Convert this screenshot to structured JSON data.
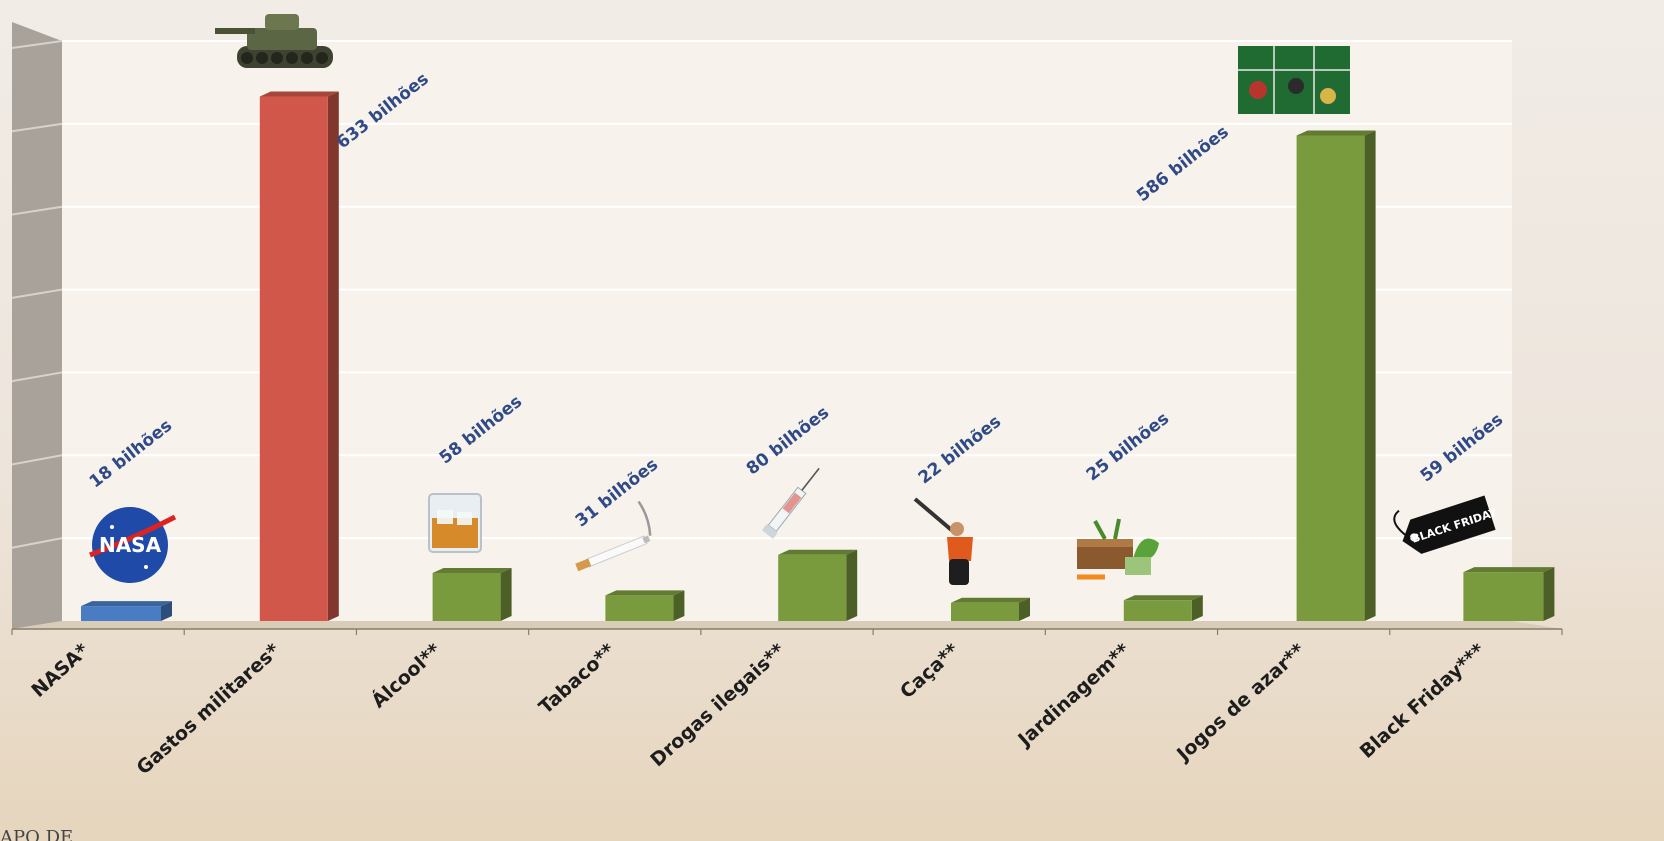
{
  "chart_data": {
    "type": "bar",
    "title": "",
    "xlabel": "",
    "ylabel": "",
    "ylim": [
      0,
      700
    ],
    "unit": "bilhões",
    "categories": [
      "NASA*",
      "Gastos militares*",
      "Álcool**",
      "Tabaco**",
      "Drogas ilegais**",
      "Caça**",
      "Jardinagem**",
      "Jogos de azar**",
      "Black Friday***"
    ],
    "values": [
      18,
      633,
      58,
      31,
      80,
      22,
      25,
      586,
      59
    ],
    "value_labels": [
      "18 bilhões",
      "633 bilhões",
      "58 bilhões",
      "31 bilhões",
      "80 bilhões",
      "22 bilhões",
      "25 bilhões",
      "586 bilhões",
      "59 bilhões"
    ],
    "icons": [
      "nasa-logo-icon",
      "tank-icon",
      "whiskey-glass-icon",
      "cigarette-icon",
      "syringe-icon",
      "hunter-icon",
      "gardening-icon",
      "roulette-table-icon",
      "black-friday-tag-icon"
    ],
    "icon_texts": {
      "nasa": "NASA",
      "black_friday": "BLACK FRIDAY"
    },
    "colors": {
      "nasa": "#4a7cc4",
      "military": "#d0574a",
      "default": "#7a9a3e",
      "value_label": "#2f4a86",
      "gridline": "#ffffff"
    },
    "grid": true
  },
  "footer": {
    "text": "APO DE"
  }
}
